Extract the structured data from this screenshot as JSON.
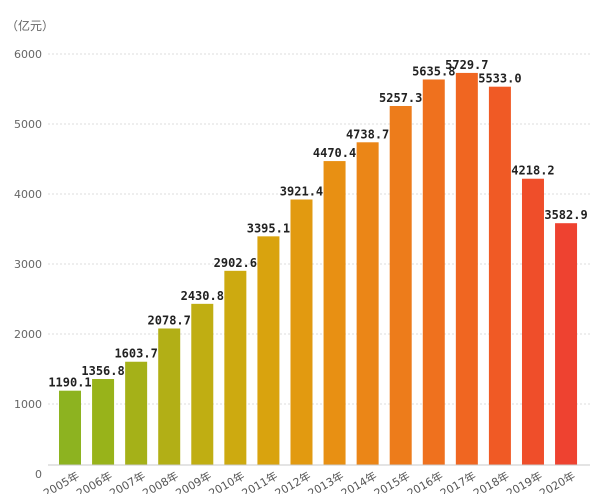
{
  "chart_data": {
    "type": "bar",
    "unit_label": "（亿元）",
    "categories": [
      "2005年",
      "2006年",
      "2007年",
      "2008年",
      "2009年",
      "2010年",
      "2011年",
      "2012年",
      "2013年",
      "2014年",
      "2015年",
      "2016年",
      "2017年",
      "2018年",
      "2019年",
      "2020年"
    ],
    "values": [
      1190.1,
      1356.8,
      1603.7,
      2078.7,
      2430.8,
      2902.6,
      3395.1,
      3921.4,
      4470.4,
      4738.7,
      5257.3,
      5635.8,
      5729.7,
      5533.0,
      4218.2,
      3582.9
    ],
    "value_labels": [
      "1190.1",
      "1356.8",
      "1603.7",
      "2078.7",
      "2430.8",
      "2902.6",
      "3395.1",
      "3921.4",
      "4470.4",
      "4738.7",
      "5257.3",
      "5635.8",
      "5729.7",
      "5533.0",
      "4218.2",
      "3582.9"
    ],
    "ylim": [
      0,
      6000
    ],
    "yticks": [
      "0",
      "1000",
      "2000",
      "3000",
      "4000",
      "5000",
      "6000"
    ],
    "grid": true,
    "legend": "none",
    "bar_colors": [
      "#8db320",
      "#98b31a",
      "#a5b118",
      "#b2af16",
      "#c0ae12",
      "#cdaa10",
      "#d9a30e",
      "#e29a10",
      "#e89013",
      "#eb8617",
      "#ed7c1b",
      "#ef711e",
      "#f06621",
      "#f05a25",
      "#ef4e2a",
      "#ee4230"
    ]
  }
}
